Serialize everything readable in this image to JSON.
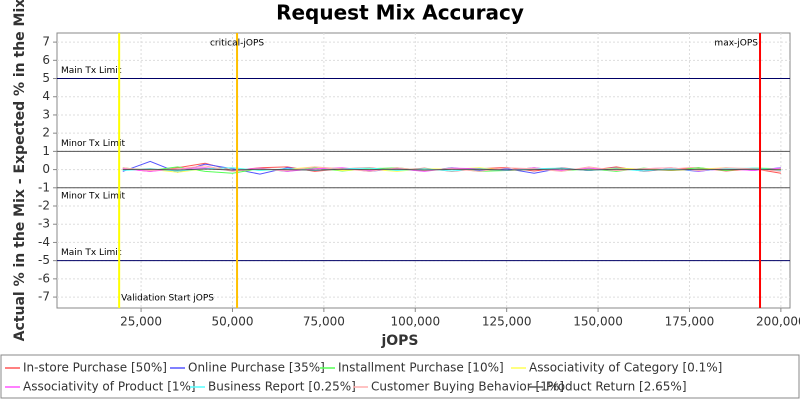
{
  "chart_data": {
    "type": "line",
    "title": "Request Mix Accuracy",
    "x_label": "jOPS",
    "y_label": "Actual % in the Mix - Expected % in the Mix",
    "xlim": [
      2000,
      202500
    ],
    "ylim": [
      -7.6,
      7.5
    ],
    "xticks": [
      {
        "value": 25000,
        "label": "25,000"
      },
      {
        "value": 50000,
        "label": "50,000"
      },
      {
        "value": 75000,
        "label": "75,000"
      },
      {
        "value": 100000,
        "label": "100,000"
      },
      {
        "value": 125000,
        "label": "125,000"
      },
      {
        "value": 150000,
        "label": "150,000"
      },
      {
        "value": 175000,
        "label": "175,000"
      },
      {
        "value": 200000,
        "label": "200,000"
      }
    ],
    "yticks": [
      -7,
      -6,
      -5,
      -4,
      -3,
      -2,
      -1,
      0,
      1,
      2,
      3,
      4,
      5,
      6,
      7
    ],
    "grid": true,
    "hlines": [
      {
        "value": 5,
        "label": "Main Tx Limit",
        "label_position": "above",
        "color": "#000066"
      },
      {
        "value": 1,
        "label": "Minor Tx Limit",
        "label_position": "above",
        "color": "#555555"
      },
      {
        "value": -1,
        "label": "Minor Tx Limit",
        "label_position": "below",
        "color": "#555555"
      },
      {
        "value": -5,
        "label": "Main Tx Limit",
        "label_position": "above",
        "color": "#000066"
      }
    ],
    "vlines": [
      {
        "value": 19000,
        "label": "Validation Start jOPS",
        "label_at": "bottom",
        "label_anchor": "start",
        "color": "#ffff00"
      },
      {
        "value": 51250,
        "label": "critical-jOPS",
        "label_at": "top",
        "label_anchor": "middle",
        "color": "#ffc000"
      },
      {
        "value": 194300,
        "label": "max-jOPS",
        "label_at": "top",
        "label_anchor": "end",
        "color": "#ff0000"
      }
    ],
    "x": [
      20000,
      27500,
      35000,
      42500,
      50000,
      57500,
      65000,
      72500,
      80000,
      87500,
      95000,
      102500,
      110000,
      117500,
      125000,
      132500,
      140000,
      147500,
      155000,
      162500,
      170000,
      177500,
      185000,
      192500,
      200000
    ],
    "series": [
      {
        "name": "In-store Purchase [50%]",
        "color": "#ff5555",
        "values": [
          0.05,
          -0.1,
          0.1,
          0.35,
          -0.05,
          0.1,
          0.15,
          -0.1,
          0.05,
          0.1,
          -0.05,
          0.08,
          -0.1,
          0.05,
          0.12,
          -0.08,
          0.1,
          -0.05,
          0.15,
          -0.1,
          0.05,
          0.1,
          -0.08,
          0.05,
          -0.2
        ]
      },
      {
        "name": "Online Purchase [35%]",
        "color": "#5555ff",
        "values": [
          -0.1,
          0.45,
          -0.15,
          0.3,
          0.05,
          -0.25,
          0.1,
          -0.05,
          0.08,
          -0.1,
          0.05,
          -0.08,
          0.1,
          -0.05,
          0.05,
          -0.2,
          0.08,
          -0.05,
          0.1,
          -0.08,
          0.05,
          -0.1,
          0.08,
          -0.05,
          0.1
        ]
      },
      {
        "name": "Installment Purchase [10%]",
        "color": "#55ff55",
        "values": [
          0.1,
          -0.05,
          0.15,
          -0.1,
          -0.2,
          0.05,
          -0.1,
          0.1,
          -0.08,
          0.05,
          0.1,
          -0.05,
          0.08,
          -0.1,
          -0.05,
          0.1,
          -0.08,
          0.05,
          -0.1,
          0.08,
          -0.05,
          0.1,
          -0.05,
          0.08,
          0.05
        ]
      },
      {
        "name": "Associativity of Category [0.1%]",
        "color": "#ffff55",
        "values": [
          0,
          0.02,
          -0.15,
          0.05,
          0.1,
          -0.05,
          0.02,
          0.15,
          -0.05,
          0.02,
          -0.1,
          0.05,
          0.02,
          0.1,
          -0.05,
          0.02,
          0.05,
          -0.02,
          0.08,
          0.02,
          -0.05,
          0.02,
          0.1,
          -0.02,
          0.02
        ]
      },
      {
        "name": "Associativity of Product [1%]",
        "color": "#ff55ff",
        "values": [
          0.05,
          -0.1,
          0.05,
          0.1,
          -0.05,
          0.08,
          -0.1,
          0.05,
          0.1,
          -0.05,
          0.05,
          -0.1,
          0.08,
          0.05,
          -0.05,
          0.1,
          -0.05,
          0.08,
          -0.05,
          0.05,
          0.1,
          -0.08,
          0.05,
          -0.05,
          0.08
        ]
      },
      {
        "name": "Business Report [0.25%]",
        "color": "#55ffff",
        "values": [
          -0.05,
          0.05,
          -0.08,
          0.05,
          0.1,
          -0.05,
          0.05,
          -0.05,
          0.05,
          0.08,
          -0.05,
          0.05,
          -0.08,
          0.05,
          -0.05,
          0.05,
          0.08,
          -0.05,
          0.05,
          -0.08,
          0.05,
          -0.05,
          0.05,
          0.08,
          -0.05
        ]
      },
      {
        "name": "Customer Buying Behavior [1%]",
        "color": "#ffafaf",
        "values": [
          0.1,
          -0.05,
          0.05,
          0.2,
          -0.1,
          0.05,
          -0.05,
          0.15,
          0.05,
          -0.1,
          0.1,
          -0.05,
          0.05,
          -0.1,
          0.1,
          0.05,
          -0.1,
          0.15,
          -0.05,
          0.05,
          0.1,
          -0.05,
          0.1,
          0.05,
          -0.1
        ]
      },
      {
        "name": "Product Return [2.65%]",
        "color": "#555555",
        "values": [
          0,
          0.02,
          -0.02,
          0.03,
          -0.02,
          0.02,
          0,
          -0.03,
          0.02,
          0,
          0.02,
          -0.02,
          0.01,
          0.02,
          -0.02,
          0,
          0.03,
          -0.02,
          0.02,
          0,
          -0.02,
          0.02,
          0,
          0.02,
          -0.01
        ]
      }
    ]
  }
}
